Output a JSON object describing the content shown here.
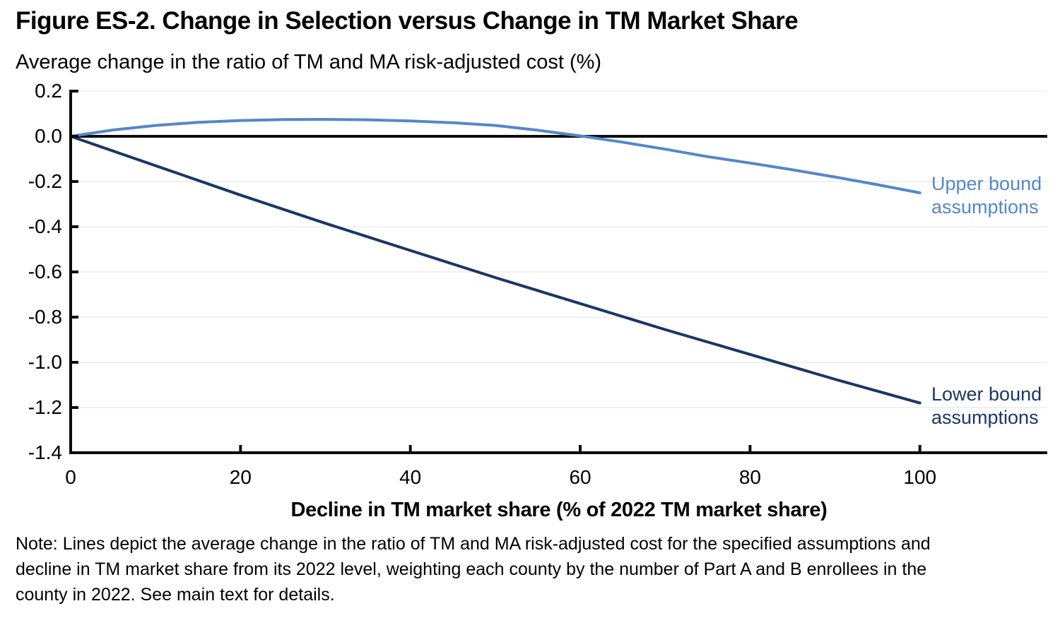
{
  "figure": {
    "title": "Figure ES-2. Change in Selection versus Change in TM Market Share",
    "subtitle": "Average change in the ratio of TM and MA risk-adjusted cost (%)",
    "note": "Note: Lines depict the average change in the ratio of TM and MA risk-adjusted cost for the specified assumptions and\ndecline in TM market share from its 2022 level, weighting each county by the number of Part A and B enrollees in the\ncounty in 2022. See main text for details."
  },
  "chart_data": {
    "type": "line",
    "title": "Figure ES-2. Change in Selection versus Change in TM Market Share",
    "ylabel": "Average change in the ratio of TM and MA risk-adjusted cost (%)",
    "xlabel": "Decline in TM market share (% of 2022 TM market share)",
    "xlim": [
      0,
      115
    ],
    "ylim": [
      -1.4,
      0.2
    ],
    "xticks": [
      0,
      20,
      40,
      60,
      80,
      100
    ],
    "yticks": [
      0.2,
      0.0,
      -0.2,
      -0.4,
      -0.6,
      -0.8,
      -1.0,
      -1.2,
      -1.4
    ],
    "ytick_labels": [
      "0.2",
      "0.0",
      "-0.2",
      "-0.4",
      "-0.6",
      "-0.8",
      "-1.0",
      "-1.2",
      "-1.4"
    ],
    "grid": "horizontal-faint",
    "zero_line": true,
    "legend_position": "right-inline-labels",
    "colors": {
      "axis": "#0d0d0d",
      "grid": "#f0f0f0",
      "upper_bound": "#5587c8",
      "lower_bound": "#1a3764"
    },
    "series": [
      {
        "name": "Upper bound assumptions",
        "label": "Upper bound\nassumptions",
        "color": "#5587c8",
        "x": [
          0,
          5,
          10,
          15,
          20,
          25,
          30,
          35,
          40,
          45,
          50,
          55,
          60,
          65,
          70,
          75,
          80,
          85,
          90,
          95,
          100
        ],
        "y": [
          0.0,
          0.028,
          0.048,
          0.062,
          0.07,
          0.074,
          0.075,
          0.073,
          0.068,
          0.06,
          0.048,
          0.027,
          0.002,
          -0.026,
          -0.057,
          -0.09,
          -0.118,
          -0.148,
          -0.18,
          -0.214,
          -0.25
        ]
      },
      {
        "name": "Lower bound assumptions",
        "label": "Lower bound\nassumptions",
        "color": "#1a3764",
        "x": [
          0,
          10,
          20,
          30,
          40,
          50,
          60,
          70,
          80,
          90,
          100
        ],
        "y": [
          0.0,
          -0.13,
          -0.26,
          -0.385,
          -0.505,
          -0.625,
          -0.74,
          -0.855,
          -0.965,
          -1.075,
          -1.18
        ]
      }
    ]
  }
}
